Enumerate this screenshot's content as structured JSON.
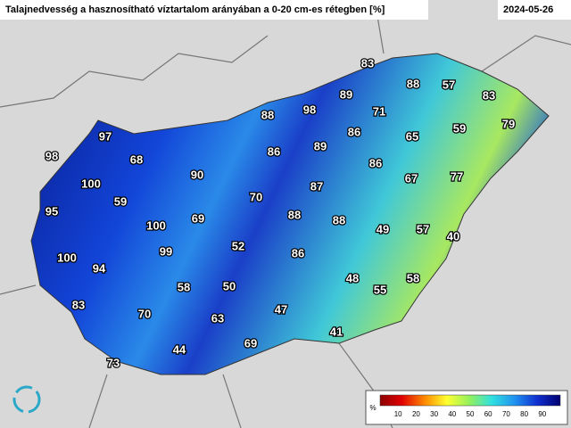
{
  "header": {
    "title": "Talajnedvesség a hasznosítható víztartalom arányában a 0-20 cm-es rétegben [%]",
    "date": "2024-05-26"
  },
  "stations": [
    83,
    88,
    57,
    83,
    89,
    71,
    88,
    98,
    59,
    79,
    86,
    65,
    97,
    89,
    86,
    98,
    68,
    86,
    90,
    67,
    77,
    100,
    87,
    59,
    70,
    95,
    69,
    88,
    88,
    100,
    49,
    57,
    40,
    52,
    99,
    86,
    100,
    94,
    48,
    58,
    58,
    50,
    55,
    83,
    47,
    70,
    63,
    41,
    44,
    69,
    73
  ],
  "legend": {
    "unit": "%",
    "ticks": [
      10,
      20,
      30,
      40,
      50,
      60,
      70,
      80,
      90
    ]
  }
}
